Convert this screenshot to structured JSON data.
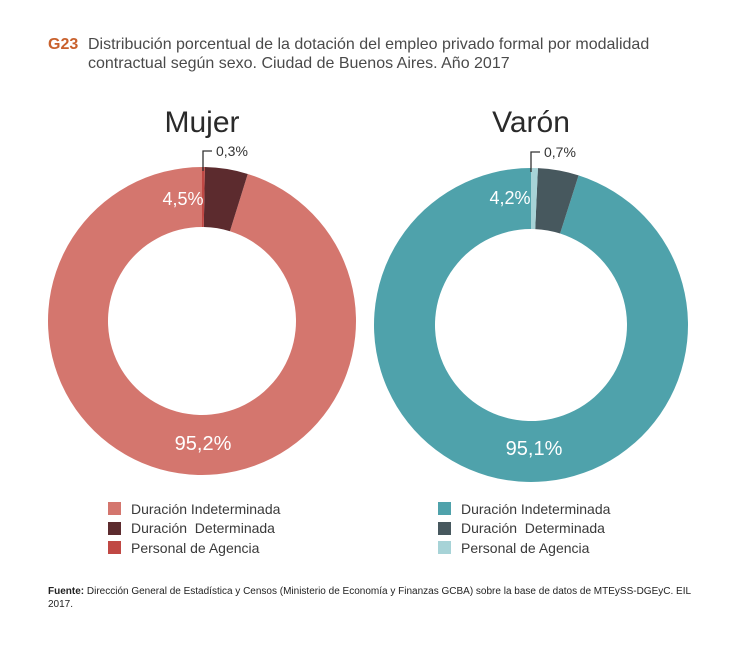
{
  "figure": {
    "code": "G23",
    "title": "Distribución porcentual de la dotación del empleo privado formal por modalidad contractual según sexo. Ciudad de Buenos Aires. Año 2017"
  },
  "chart_data": [
    {
      "type": "pie",
      "variant": "donut",
      "title": "Mujer",
      "categories": [
        "Duración Indeterminada",
        "Duración  Determinada",
        "Personal de Agencia"
      ],
      "values": [
        95.2,
        4.5,
        0.3
      ],
      "labels": [
        "95,2%",
        "4,5%",
        "0,3%"
      ],
      "colors": [
        "#d4766e",
        "#5c2b2e",
        "#c04844"
      ]
    },
    {
      "type": "pie",
      "variant": "donut",
      "title": "Varón",
      "categories": [
        "Duración Indeterminada",
        "Duración  Determinada",
        "Personal de Agencia"
      ],
      "values": [
        95.1,
        4.2,
        0.7
      ],
      "labels": [
        "95,1%",
        "4,2%",
        "0,7%"
      ],
      "colors": [
        "#4fa2ab",
        "#47585e",
        "#a7d3d7"
      ]
    }
  ],
  "source": {
    "label": "Fuente:",
    "text": " Dirección General de Estadística y Censos (Ministerio de  Economía y Finanzas GCBA) sobre la base de datos de MTEySS-DGEyC. EIL 2017."
  }
}
